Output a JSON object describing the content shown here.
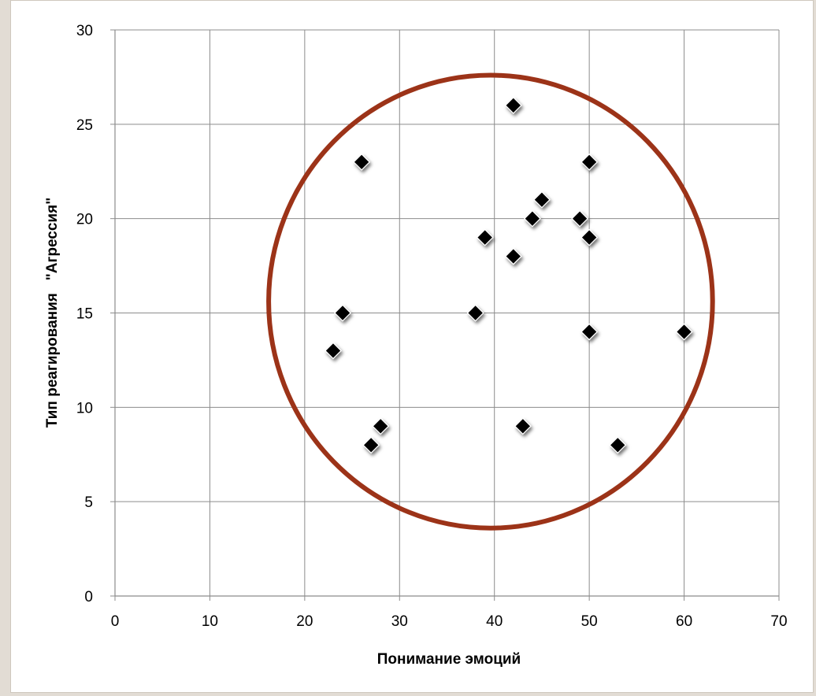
{
  "chart_data": {
    "type": "scatter",
    "title": "",
    "xlabel": "Понимание  эмоций",
    "ylabel": "Тип реагирования   \"Агрессия\"",
    "xlim": [
      0,
      70
    ],
    "ylim": [
      0,
      30
    ],
    "x_ticks": [
      0,
      10,
      20,
      30,
      40,
      50,
      60,
      70
    ],
    "y_ticks": [
      0,
      5,
      10,
      15,
      20,
      25,
      30
    ],
    "grid": true,
    "legend": "none",
    "marker": "diamond",
    "marker_color": "#000000",
    "points": [
      {
        "x": 42,
        "y": 26
      },
      {
        "x": 26,
        "y": 23
      },
      {
        "x": 50,
        "y": 23
      },
      {
        "x": 45,
        "y": 21
      },
      {
        "x": 44,
        "y": 20
      },
      {
        "x": 49,
        "y": 20
      },
      {
        "x": 39,
        "y": 19
      },
      {
        "x": 50,
        "y": 19
      },
      {
        "x": 42,
        "y": 18
      },
      {
        "x": 24,
        "y": 15
      },
      {
        "x": 38,
        "y": 15
      },
      {
        "x": 50,
        "y": 14
      },
      {
        "x": 60,
        "y": 14
      },
      {
        "x": 23,
        "y": 13
      },
      {
        "x": 28,
        "y": 9
      },
      {
        "x": 43,
        "y": 9
      },
      {
        "x": 27,
        "y": 8
      },
      {
        "x": 53,
        "y": 8
      }
    ],
    "annotations": [
      {
        "type": "ellipse",
        "cx": 39.6,
        "cy": 15.6,
        "rx": 23.4,
        "ry": 12.0,
        "color": "#9c3318"
      }
    ]
  }
}
